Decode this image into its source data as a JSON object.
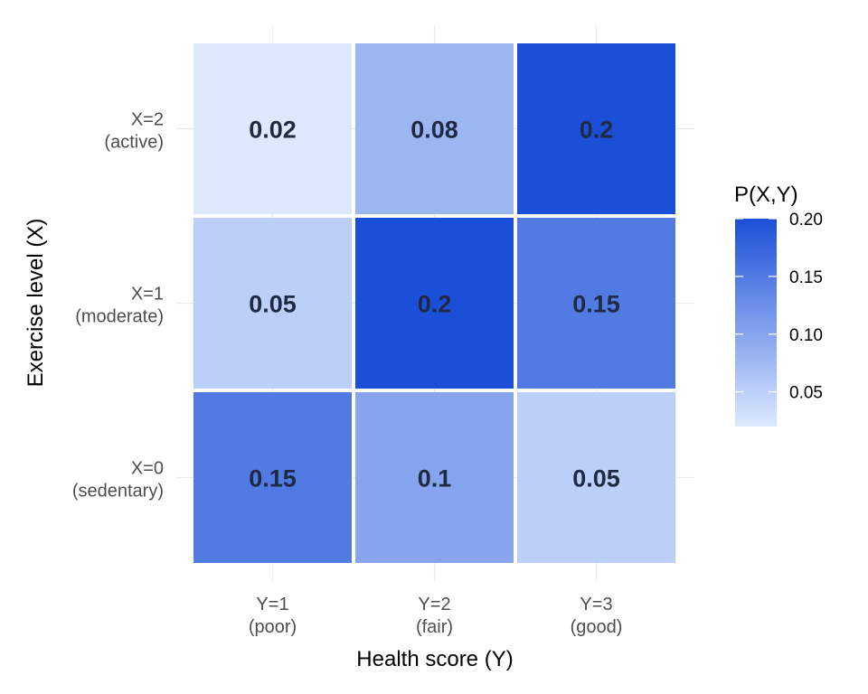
{
  "chart_data": {
    "type": "heatmap",
    "title": "",
    "xlabel": "Health score (Y)",
    "ylabel": "Exercise level (X)",
    "x_categories": [
      {
        "line1": "Y=1",
        "line2": "(poor)"
      },
      {
        "line1": "Y=2",
        "line2": "(fair)"
      },
      {
        "line1": "Y=3",
        "line2": "(good)"
      }
    ],
    "y_categories": [
      {
        "line1": "X=0",
        "line2": "(sedentary)"
      },
      {
        "line1": "X=1",
        "line2": "(moderate)"
      },
      {
        "line1": "X=2",
        "line2": "(active)"
      }
    ],
    "cells": [
      {
        "x": 0,
        "y": 0,
        "value": 0.15,
        "label": "0.15"
      },
      {
        "x": 1,
        "y": 0,
        "value": 0.1,
        "label": "0.1"
      },
      {
        "x": 2,
        "y": 0,
        "value": 0.05,
        "label": "0.05"
      },
      {
        "x": 0,
        "y": 1,
        "value": 0.05,
        "label": "0.05"
      },
      {
        "x": 1,
        "y": 1,
        "value": 0.2,
        "label": "0.2"
      },
      {
        "x": 2,
        "y": 1,
        "value": 0.15,
        "label": "0.15"
      },
      {
        "x": 0,
        "y": 2,
        "value": 0.02,
        "label": "0.02"
      },
      {
        "x": 1,
        "y": 2,
        "value": 0.08,
        "label": "0.08"
      },
      {
        "x": 2,
        "y": 2,
        "value": 0.2,
        "label": "0.2"
      }
    ],
    "legend": {
      "title": "P(X,Y)",
      "placement": "right",
      "min": 0.02,
      "max": 0.2,
      "ticks": [
        {
          "value": 0.05,
          "label": "0.05"
        },
        {
          "value": 0.1,
          "label": "0.10"
        },
        {
          "value": 0.15,
          "label": "0.15"
        },
        {
          "value": 0.2,
          "label": "0.20"
        }
      ],
      "color_low": "#dce9ff",
      "color_high": "#1c4fd8"
    },
    "grid": true,
    "grid_color": "#ebebeb"
  }
}
